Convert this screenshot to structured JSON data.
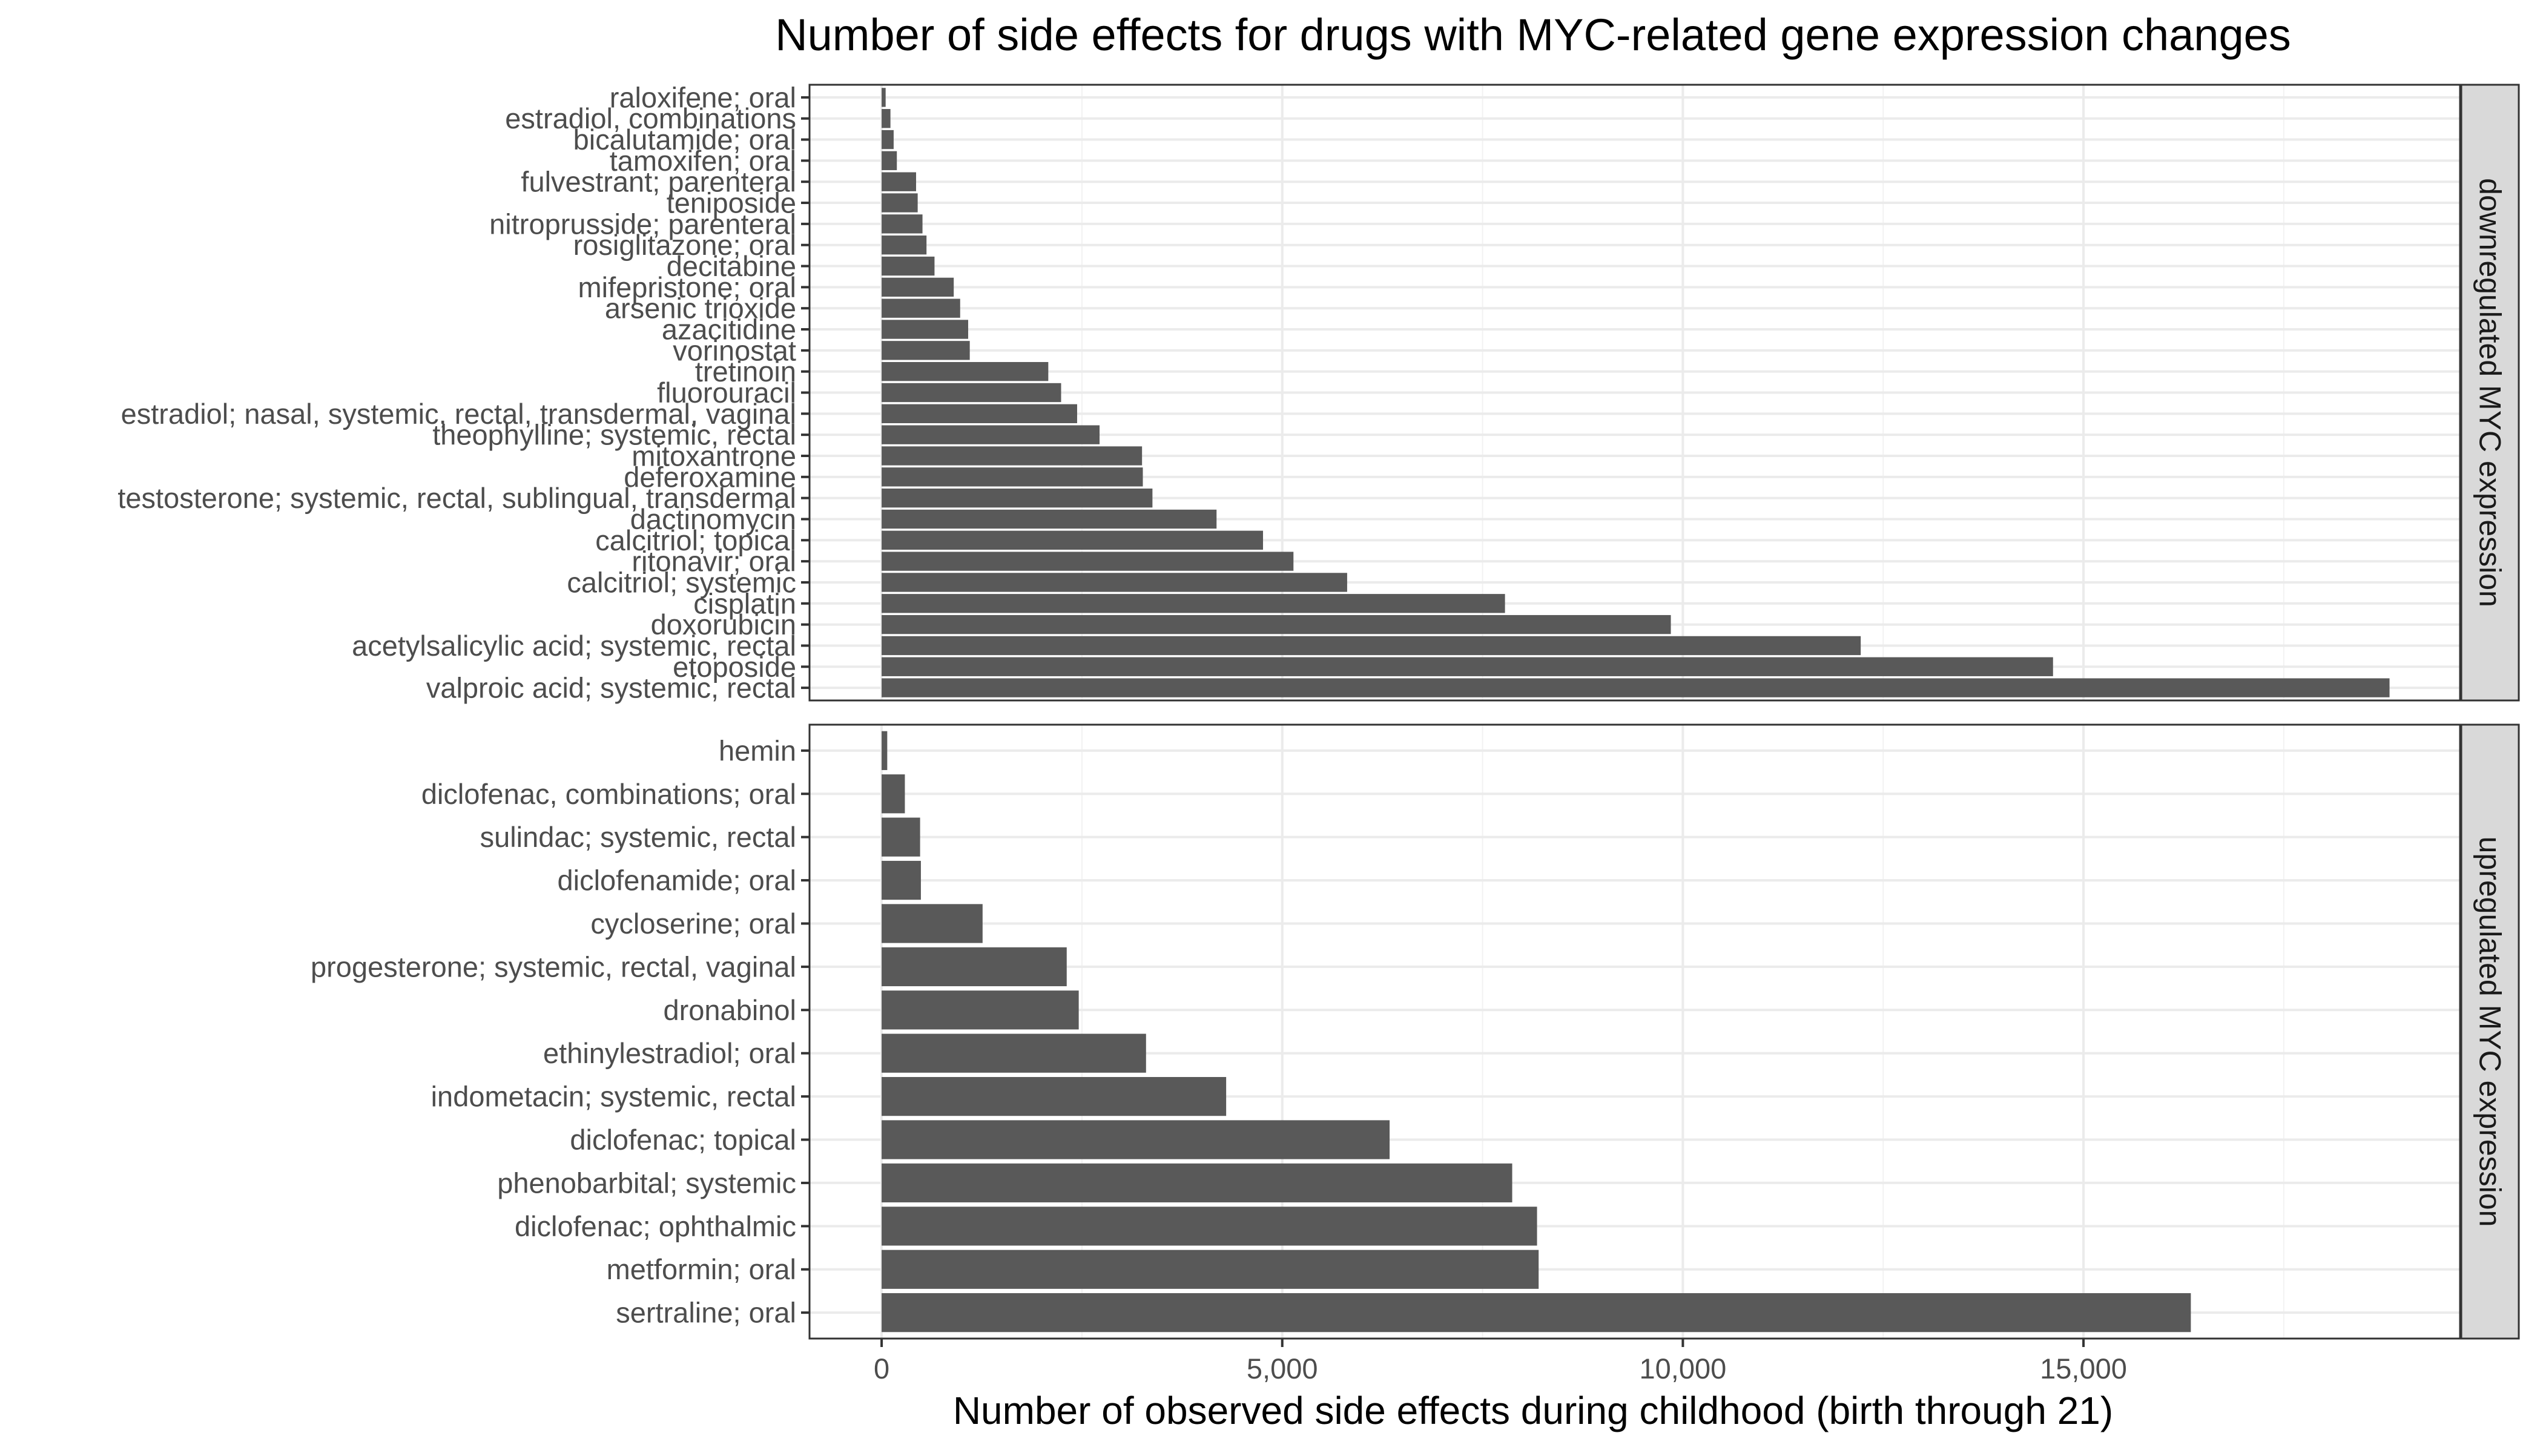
{
  "chart_data": {
    "type": "bar",
    "orientation": "horizontal",
    "title": "Number of side effects for drugs with MYC-related gene expression changes",
    "xlabel": "Number of observed side effects during childhood (birth through 21)",
    "ylabel": "",
    "xlim": [
      -900,
      19700
    ],
    "x_ticks": [
      0,
      5000,
      10000,
      15000
    ],
    "x_tick_labels": [
      "0",
      "5,000",
      "10,000",
      "15,000"
    ],
    "grid": true,
    "bar_color": "#595959",
    "panels": [
      {
        "label": "downregulated MYC expression",
        "categories": [
          "raloxifene; oral",
          "estradiol, combinations",
          "bicalutamide; oral",
          "tamoxifen; oral",
          "fulvestrant; parenteral",
          "teniposide",
          "nitroprusside; parenteral",
          "rosiglitazone; oral",
          "decitabine",
          "mifepristone; oral",
          "arsenic trioxide",
          "azacitidine",
          "vorinostat",
          "tretinoin",
          "fluorouracil",
          "estradiol; nasal, systemic, rectal, transdermal, vaginal",
          "theophylline; systemic, rectal",
          "mitoxantrone",
          "deferoxamine",
          "testosterone; systemic, rectal, sublingual, transdermal",
          "dactinomycin",
          "calcitriol; topical",
          "ritonavir; oral",
          "calcitriol; systemic",
          "cisplatin",
          "doxorubicin",
          "acetylsalicylic acid; systemic, rectal",
          "etoposide",
          "valproic acid; systemic, rectal"
        ],
        "values": [
          50,
          110,
          150,
          190,
          430,
          450,
          510,
          560,
          660,
          900,
          980,
          1080,
          1100,
          2080,
          2240,
          2440,
          2720,
          3250,
          3260,
          3380,
          4180,
          4760,
          5140,
          5810,
          7780,
          9850,
          12220,
          14620,
          18820
        ]
      },
      {
        "label": "upregulated MYC expression",
        "categories": [
          "hemin",
          "diclofenac, combinations; oral",
          "sulindac; systemic, rectal",
          "diclofenamide; oral",
          "cycloserine; oral",
          "progesterone; systemic, rectal, vaginal",
          "dronabinol",
          "ethinylestradiol; oral",
          "indometacin; systemic, rectal",
          "diclofenac; topical",
          "phenobarbital; systemic",
          "diclofenac; ophthalmic",
          "metformin; oral",
          "sertraline; oral"
        ],
        "values": [
          70,
          290,
          480,
          490,
          1260,
          2310,
          2460,
          3300,
          4300,
          6340,
          7870,
          8180,
          8200,
          16340
        ]
      }
    ]
  }
}
